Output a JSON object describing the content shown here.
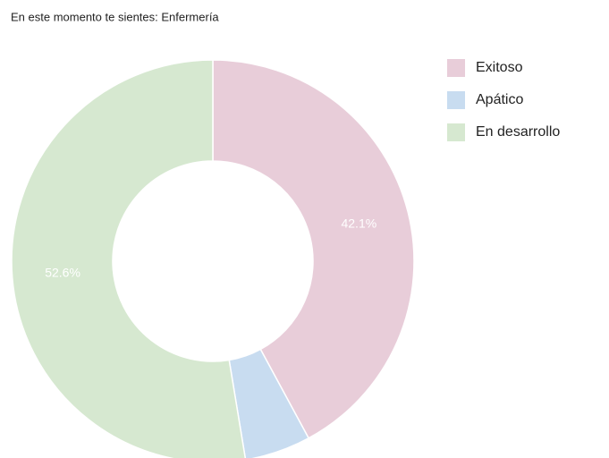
{
  "chart_data": {
    "type": "donut",
    "title": "En este momento te sientes: Enfermería",
    "categories": [
      "Exitoso",
      "Apático",
      "En desarrollo"
    ],
    "values": [
      42.1,
      5.3,
      52.6
    ],
    "value_labels": [
      "42.1%",
      null,
      "52.6%"
    ],
    "colors": [
      "#e8cdd9",
      "#c8dcf0",
      "#d6e8d0"
    ],
    "legend": "right"
  }
}
